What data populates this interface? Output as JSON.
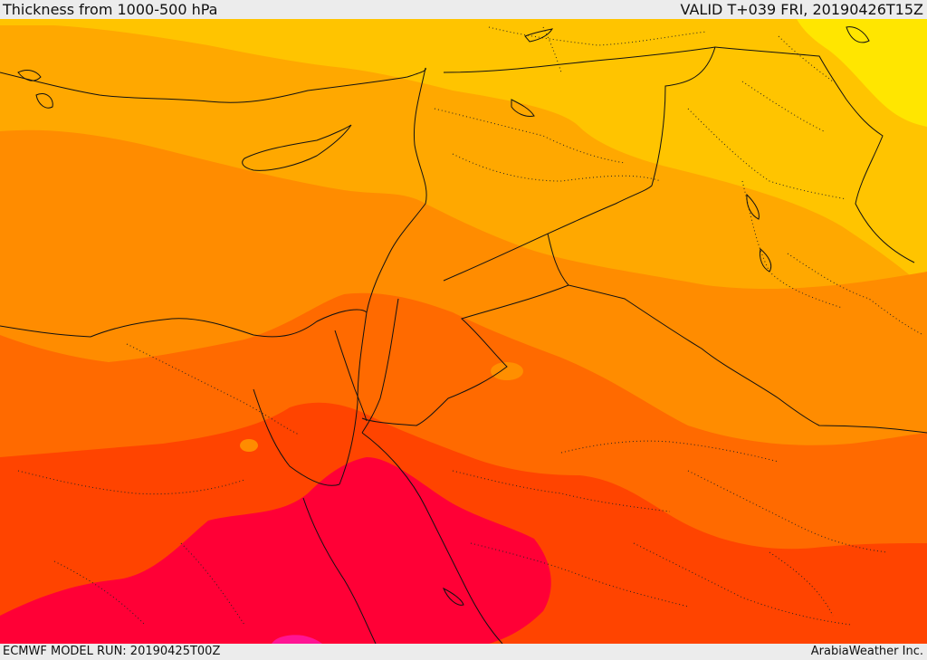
{
  "header": {
    "title": "Thickness from 1000-500 hPa",
    "valid": "VALID T+039 FRI, 20190426T15Z"
  },
  "footer": {
    "model_run": "ECMWF MODEL RUN: 20190425T00Z",
    "credit": "ArabiaWeather Inc."
  },
  "legend_colors": {
    "bright_yellow": "#ffe600",
    "yellow": "#ffc400",
    "light_orange": "#ffa800",
    "orange": "#ff8c00",
    "dark_orange": "#ff6a00",
    "red_orange": "#ff4400",
    "crimson": "#ff0036",
    "magenta": "#ff1493"
  }
}
